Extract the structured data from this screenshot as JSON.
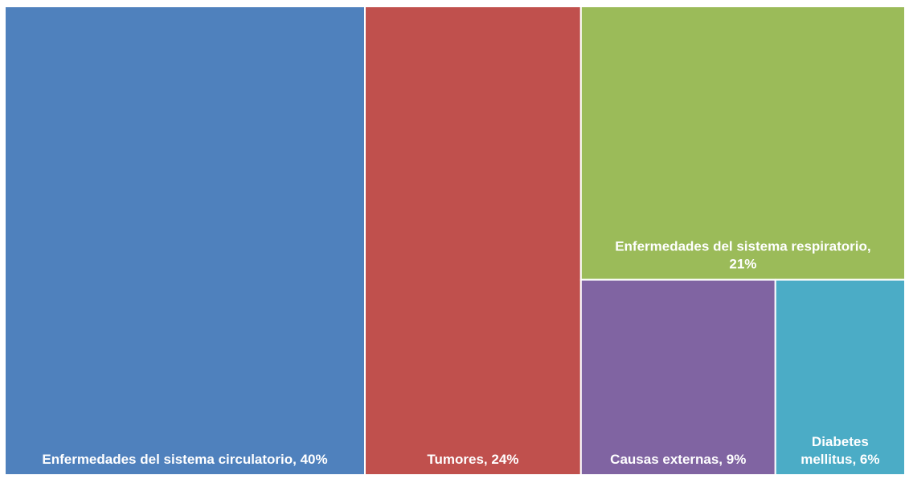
{
  "chart_data": {
    "type": "treemap",
    "items": [
      {
        "label": "Enfermedades del sistema circulatorio, 40%",
        "category": "Enfermedades del sistema circulatorio",
        "value": 40,
        "color": "#4F81BD"
      },
      {
        "label": "Tumores, 24%",
        "category": "Tumores",
        "value": 24,
        "color": "#C0504D"
      },
      {
        "label": "Enfermedades del sistema respiratorio, 21%",
        "category": "Enfermedades del sistema respiratorio",
        "value": 21,
        "color": "#9BBB59"
      },
      {
        "label": "Causas externas, 9%",
        "category": "Causas externas",
        "value": 9,
        "color": "#8064A2"
      },
      {
        "label": "Diabetes mellitus, 6%",
        "category": "Diabetes mellitus",
        "value": 6,
        "color": "#4BACC6"
      }
    ]
  }
}
